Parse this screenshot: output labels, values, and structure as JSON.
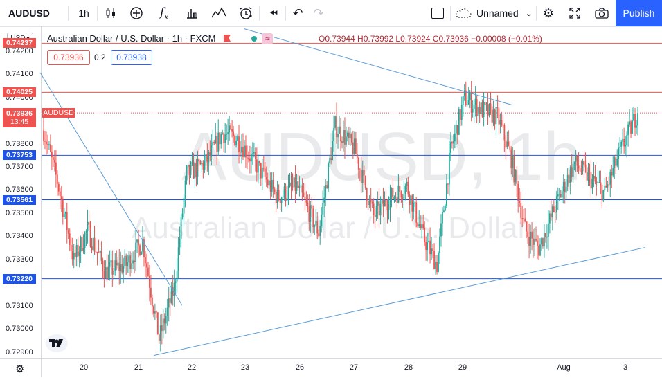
{
  "toolbar": {
    "symbol": "AUDUSD",
    "interval": "1h",
    "layout_name": "Unnamed",
    "publish_label": "Publish"
  },
  "legend": {
    "title": "Australian Dollar / U.S. Dollar · 1h · FXCM",
    "ohlc": "O0.73944 H0.73992 L0.73924 C0.73936 −0.00008 (−0.01%)",
    "sell_price": "0.73936",
    "spread": "0.2",
    "buy_price": "0.73938"
  },
  "price_axis": {
    "currency": "USD",
    "ticks": [
      "0.74200",
      "0.74100",
      "0.74000",
      "0.73900",
      "0.73800",
      "0.73700",
      "0.73600",
      "0.73500",
      "0.73400",
      "0.73300",
      "0.73200",
      "0.73100",
      "0.73000",
      "0.72900"
    ],
    "labels": [
      {
        "text": "0.74237",
        "value": 0.74237,
        "color": "#ef5350"
      },
      {
        "text": "0.74025",
        "value": 0.74025,
        "color": "#ef5350"
      },
      {
        "text": "0.73753",
        "value": 0.73753,
        "color": "#1e53e5"
      },
      {
        "text": "0.73561",
        "value": 0.73561,
        "color": "#1e53e5"
      },
      {
        "text": "0.73220",
        "value": 0.7322,
        "color": "#1e53e5"
      }
    ],
    "current": {
      "price": "0.73936",
      "countdown": "13:45",
      "value": 0.73936,
      "symbol": "AUDUSD"
    }
  },
  "time_axis": {
    "labels": [
      "20",
      "21",
      "22",
      "23",
      "26",
      "27",
      "28",
      "29",
      "Aug",
      "3"
    ]
  },
  "watermark": {
    "line1": "AUDUSD, 1h",
    "line2": "Australian Dollar / U.S. Dollar"
  },
  "colors": {
    "up": "#26a69a",
    "down": "#ef5350",
    "support": "#1e53e5",
    "resistance": "#ef5350",
    "trend": "#5b9bd5",
    "accent": "#2962ff"
  },
  "chart_data": {
    "type": "candlestick",
    "timeframe": "1h",
    "ylim": [
      0.72875,
      0.7431
    ],
    "horizontal_lines": [
      0.74237,
      0.74025,
      0.73753,
      0.73561,
      0.7322
    ],
    "trendlines": [
      {
        "from": [
          "20-start",
          0.7411
        ],
        "to": [
          "21-late",
          0.73105
        ]
      },
      {
        "from": [
          "21-early",
          0.72888
        ],
        "to": [
          "3-late",
          0.73355
        ]
      },
      {
        "from": [
          "22-late",
          0.743
        ],
        "to": [
          "29-late",
          0.7397
        ]
      }
    ],
    "anchors": [
      {
        "x": 0,
        "c": 0.7386
      },
      {
        "x": 10,
        "c": 0.7364
      },
      {
        "x": 22,
        "c": 0.733
      },
      {
        "x": 32,
        "c": 0.7343
      },
      {
        "x": 45,
        "c": 0.7325
      },
      {
        "x": 60,
        "c": 0.7328
      },
      {
        "x": 72,
        "c": 0.7338
      },
      {
        "x": 84,
        "c": 0.7296
      },
      {
        "x": 95,
        "c": 0.7318
      },
      {
        "x": 104,
        "c": 0.7367
      },
      {
        "x": 118,
        "c": 0.7372
      },
      {
        "x": 130,
        "c": 0.7385
      },
      {
        "x": 140,
        "c": 0.7383
      },
      {
        "x": 156,
        "c": 0.737
      },
      {
        "x": 170,
        "c": 0.7357
      },
      {
        "x": 184,
        "c": 0.7362
      },
      {
        "x": 200,
        "c": 0.7342
      },
      {
        "x": 212,
        "c": 0.7388
      },
      {
        "x": 226,
        "c": 0.7378
      },
      {
        "x": 240,
        "c": 0.7349
      },
      {
        "x": 252,
        "c": 0.7357
      },
      {
        "x": 264,
        "c": 0.7362
      },
      {
        "x": 276,
        "c": 0.734
      },
      {
        "x": 286,
        "c": 0.7328
      },
      {
        "x": 296,
        "c": 0.7377
      },
      {
        "x": 306,
        "c": 0.74
      },
      {
        "x": 318,
        "c": 0.7395
      },
      {
        "x": 330,
        "c": 0.7392
      },
      {
        "x": 340,
        "c": 0.7374
      },
      {
        "x": 350,
        "c": 0.7343
      },
      {
        "x": 360,
        "c": 0.7335
      },
      {
        "x": 372,
        "c": 0.7353
      },
      {
        "x": 386,
        "c": 0.7372
      },
      {
        "x": 396,
        "c": 0.7366
      },
      {
        "x": 408,
        "c": 0.7359
      },
      {
        "x": 418,
        "c": 0.7375
      },
      {
        "x": 432,
        "c": 0.7394
      }
    ]
  }
}
